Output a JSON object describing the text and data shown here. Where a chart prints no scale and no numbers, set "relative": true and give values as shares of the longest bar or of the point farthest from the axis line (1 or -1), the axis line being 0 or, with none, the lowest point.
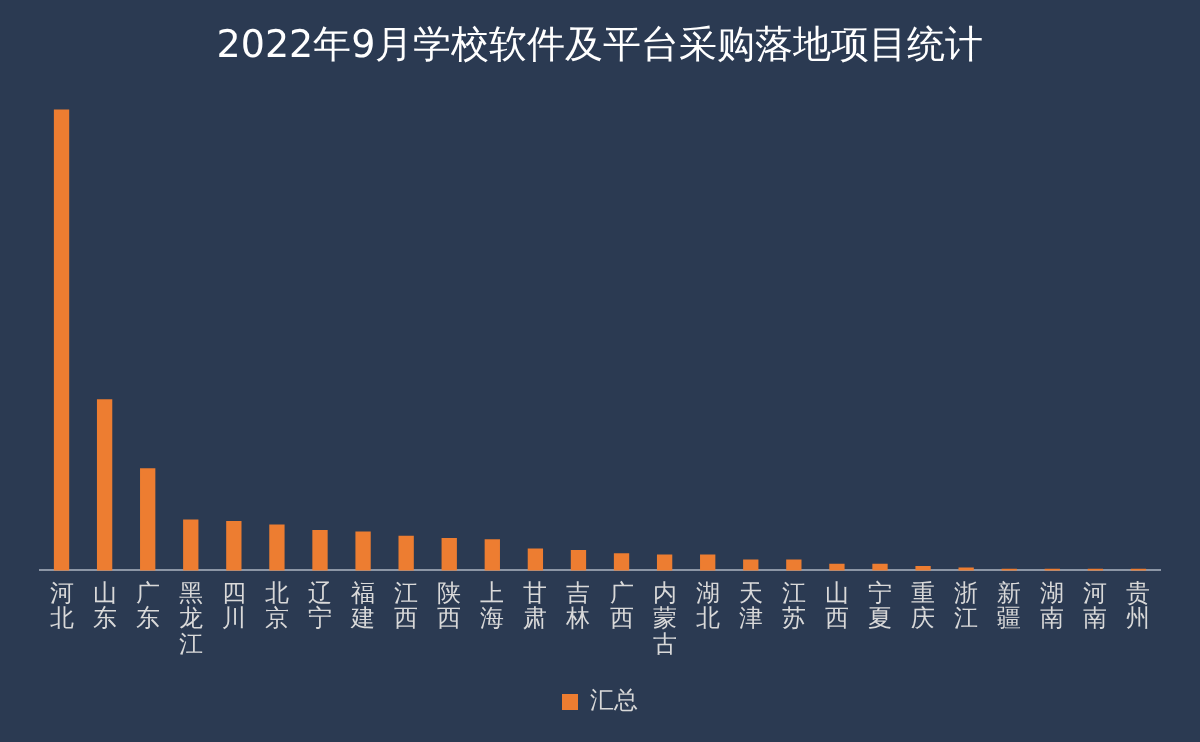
{
  "chart_data": {
    "type": "bar",
    "title": "2022年9月学校软件及平台采购落地项目统计",
    "relative": true,
    "legend": "bottom",
    "grid": false,
    "categories": [
      "河北",
      "山东",
      "广东",
      "黑龙江",
      "四川",
      "北京",
      "辽宁",
      "福建",
      "江西",
      "陕西",
      "上海",
      "甘肃",
      "吉林",
      "广西",
      "内蒙古",
      "湖北",
      "天津",
      "江苏",
      "山西",
      "宁夏",
      "重庆",
      "浙江",
      "新疆",
      "湖南",
      "河南",
      "贵州"
    ],
    "series": [
      {
        "name": "汇总",
        "color": "#ed7d31",
        "values": [
          1,
          0.37,
          0.22,
          0.109,
          0.106,
          0.098,
          0.086,
          0.083,
          0.074,
          0.069,
          0.066,
          0.046,
          0.043,
          0.036,
          0.033,
          0.033,
          0.022,
          0.022,
          0.013,
          0.013,
          0.008,
          0.005,
          0.002,
          0.002,
          0.002,
          0.002
        ]
      }
    ]
  }
}
